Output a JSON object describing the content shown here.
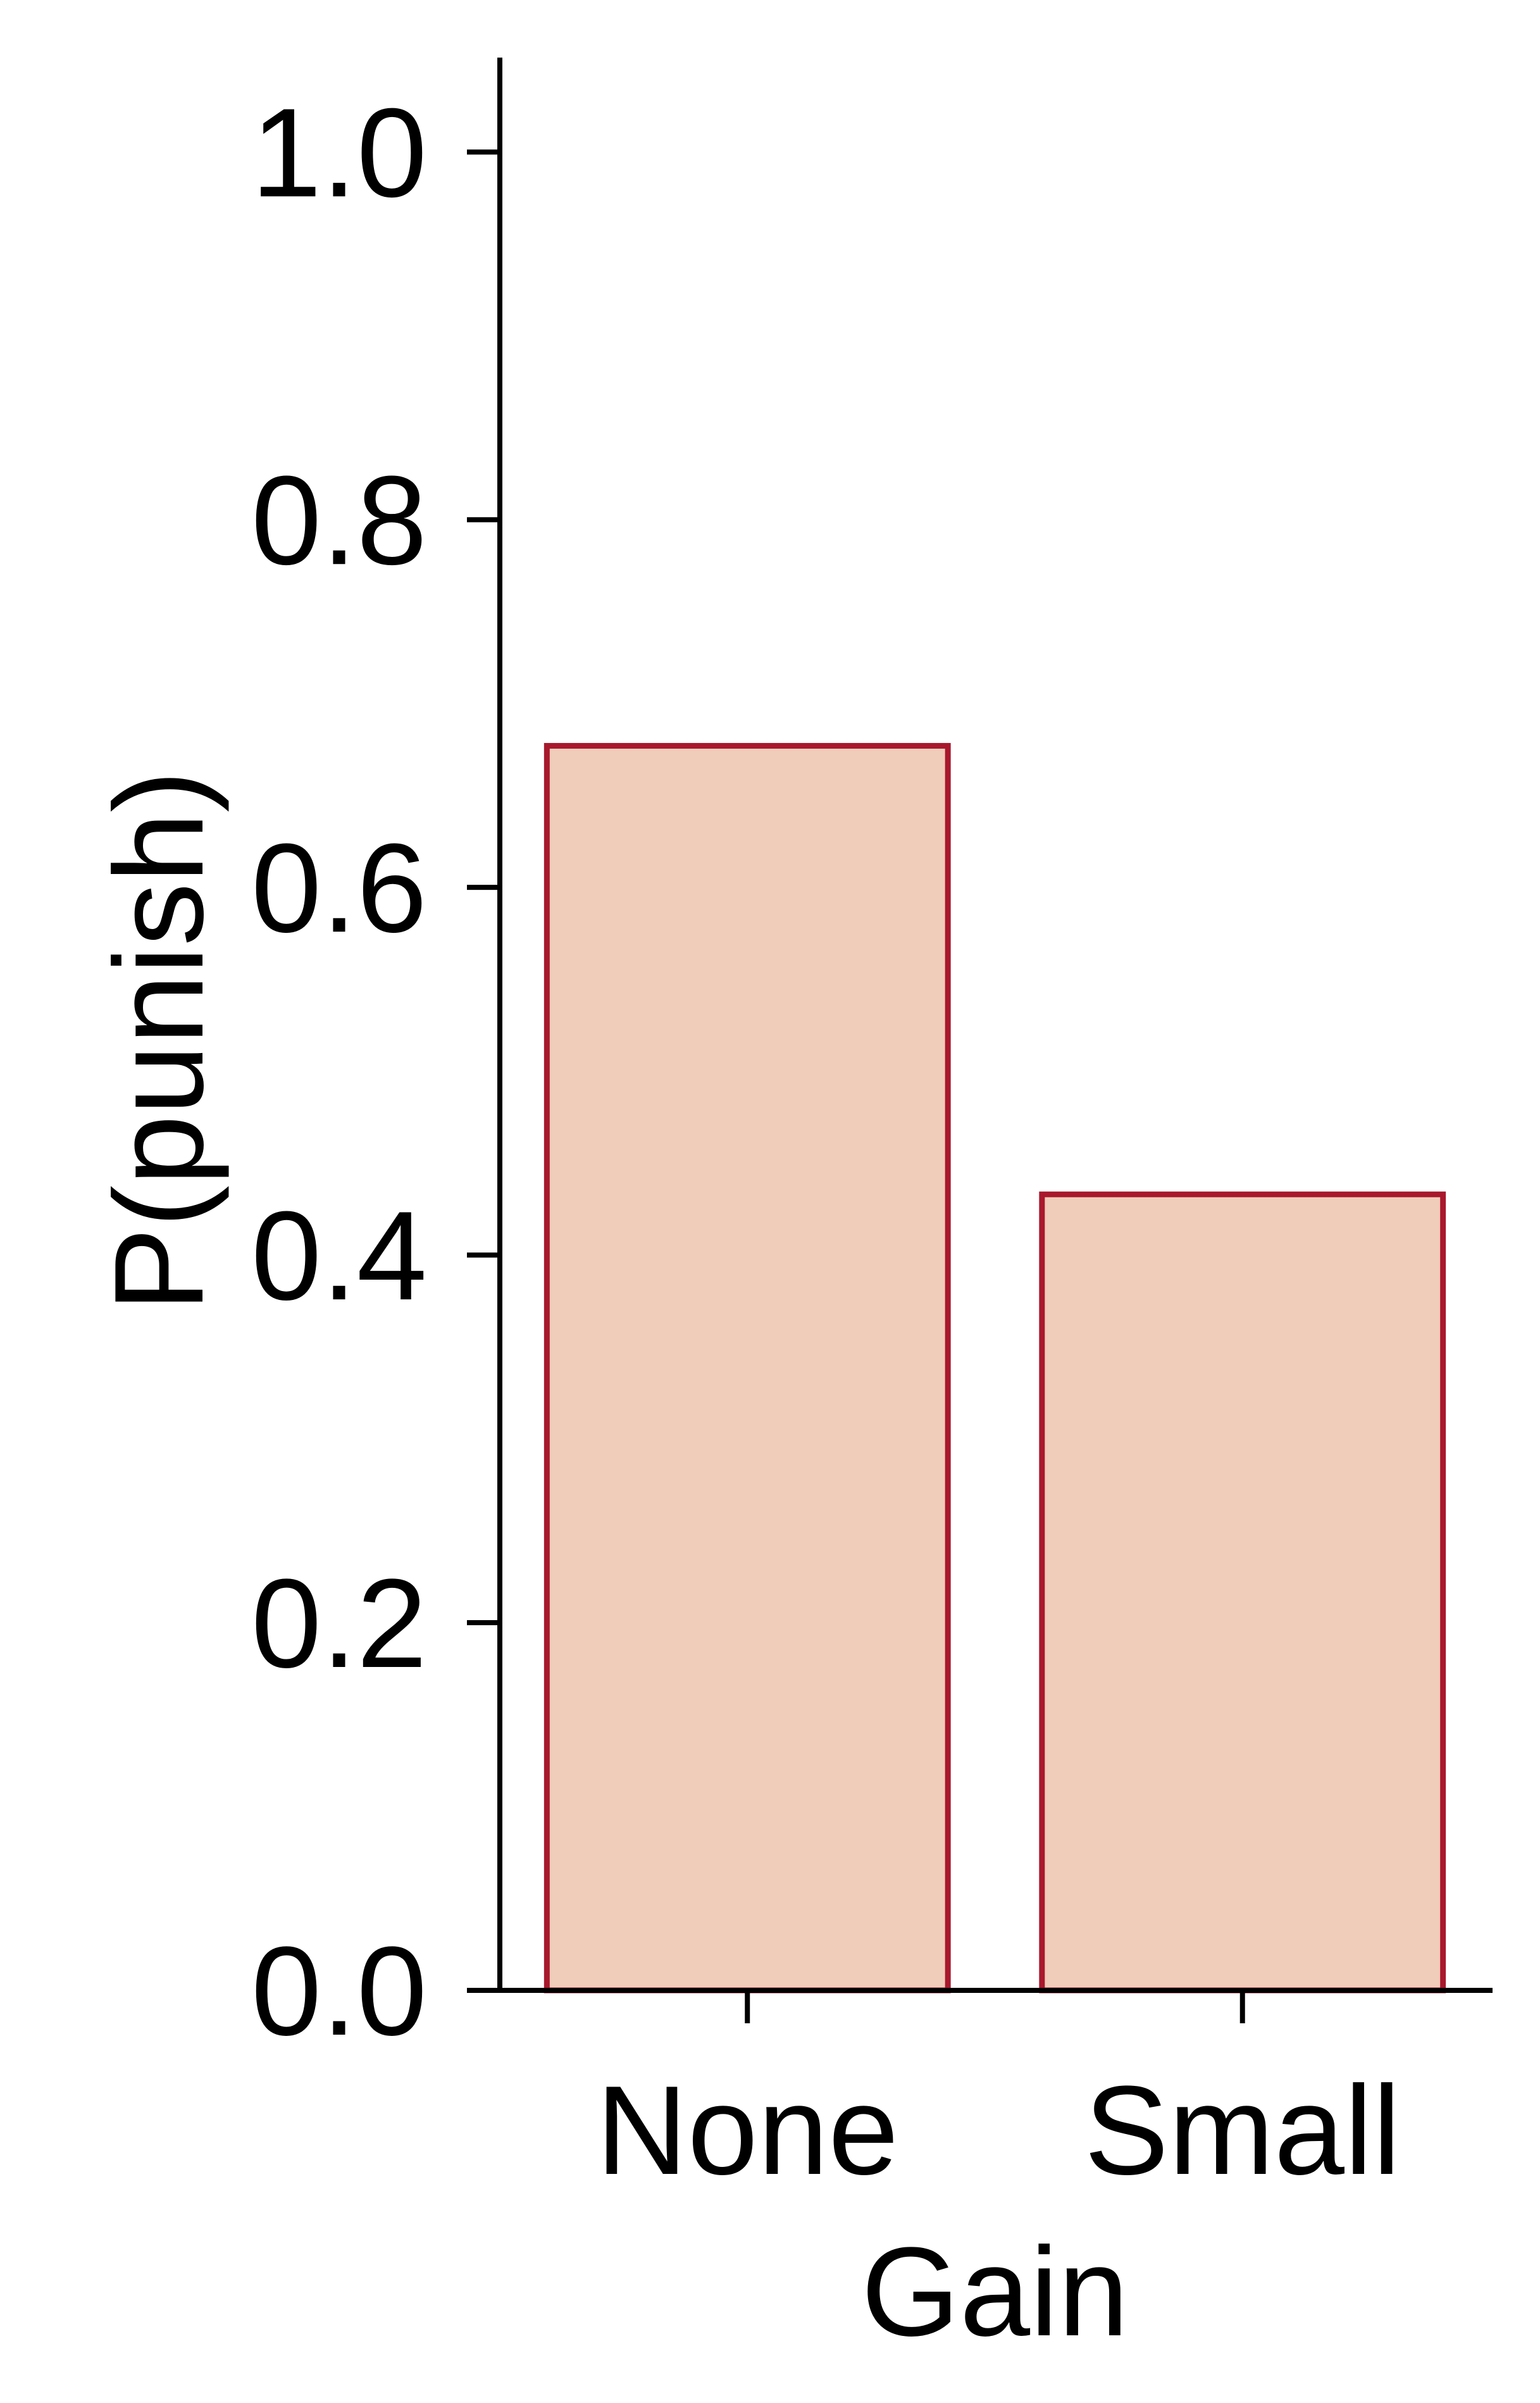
{
  "chart_data": {
    "type": "bar",
    "categories": [
      "None",
      "Small"
    ],
    "values": [
      0.677,
      0.433
    ],
    "xlabel": "Gain",
    "ylabel": "P(punish)",
    "ylim": [
      0,
      1.05
    ],
    "yticks": [
      0.0,
      0.2,
      0.4,
      0.6,
      0.8,
      1.0
    ],
    "ytick_labels": [
      "0.0",
      "0.2",
      "0.4",
      "0.6",
      "0.8",
      "1.0"
    ],
    "grid": false,
    "colors": {
      "bar_fill": "#f0ccba",
      "bar_edge": "#a8182d",
      "axis": "#000000"
    }
  }
}
